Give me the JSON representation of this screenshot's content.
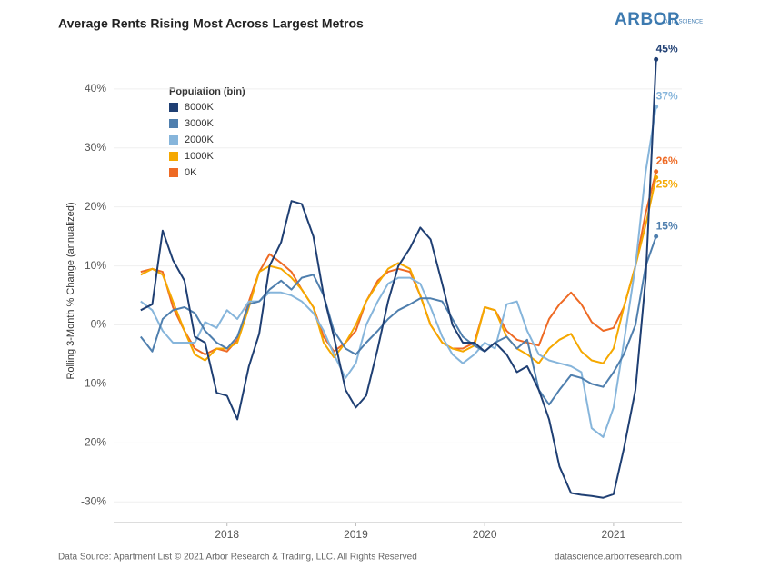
{
  "chart_data": {
    "type": "line",
    "title": "Average Rents Rising Most Across Largest Metros",
    "logo": "ARBOR",
    "logo_sub": "DATA SCIENCE",
    "y_label": "Rolling 3-Month % Change (annualized)",
    "legend_title": "Population (bin)",
    "source": "Data Source: Apartment List © 2021 Arbor Research & Trading, LLC. All Rights Reserved",
    "website": "datascience.arborresearch.com",
    "x": [
      2017.33,
      2017.42,
      2017.5,
      2017.58,
      2017.67,
      2017.75,
      2017.83,
      2017.92,
      2018.0,
      2018.08,
      2018.17,
      2018.25,
      2018.33,
      2018.42,
      2018.5,
      2018.58,
      2018.67,
      2018.75,
      2018.83,
      2018.92,
      2019.0,
      2019.08,
      2019.17,
      2019.25,
      2019.33,
      2019.42,
      2019.5,
      2019.58,
      2019.67,
      2019.75,
      2019.83,
      2019.92,
      2020.0,
      2020.08,
      2020.17,
      2020.25,
      2020.33,
      2020.42,
      2020.5,
      2020.58,
      2020.67,
      2020.75,
      2020.83,
      2020.92,
      2021.0,
      2021.08,
      2021.17,
      2021.25,
      2021.33
    ],
    "xlim": [
      2017.12,
      2021.53
    ],
    "xticks": [
      2018,
      2019,
      2020,
      2021
    ],
    "ylim": [
      -33.5,
      46.6
    ],
    "yticks": [
      {
        "value": -30,
        "label": "-30%"
      },
      {
        "value": -20,
        "label": "-20%"
      },
      {
        "value": -10,
        "label": "-10%"
      },
      {
        "value": 0,
        "label": "0%"
      },
      {
        "value": 10,
        "label": "10%"
      },
      {
        "value": 20,
        "label": "20%"
      },
      {
        "value": 30,
        "label": "30%"
      },
      {
        "value": 40,
        "label": "40%"
      }
    ],
    "grid": true,
    "series": [
      {
        "name": "8000K",
        "color": "#1f3f73",
        "end_label": "45%",
        "values": [
          2.5,
          3.5,
          16,
          11,
          7.5,
          -2,
          -3,
          -11.5,
          -12,
          -16,
          -7,
          -1.5,
          10,
          14,
          21,
          20.5,
          15,
          5,
          -2,
          -11,
          -14,
          -12,
          -4,
          4,
          10,
          13,
          16.5,
          14.5,
          7,
          0,
          -3,
          -3,
          -4.5,
          -3,
          -5,
          -8,
          -7,
          -11,
          -16,
          -24,
          -28.5,
          -28.8,
          -29,
          -29.3,
          -28.7,
          -21,
          -11,
          8,
          45
        ]
      },
      {
        "name": "3000K",
        "color": "#4f7fae",
        "end_label": "15%",
        "values": [
          -2,
          -4.5,
          1,
          2.5,
          3,
          2,
          -1,
          -3,
          -4,
          -2,
          3.5,
          4,
          6,
          7.5,
          6,
          8,
          8.5,
          5,
          -1,
          -4,
          -5,
          -3,
          -1,
          1,
          2.5,
          3.5,
          4.5,
          4.5,
          4,
          1,
          -2,
          -3.5,
          -4.5,
          -3,
          -2,
          -4,
          -2.5,
          -11,
          -13.5,
          -11,
          -8.5,
          -9,
          -10,
          -10.5,
          -8,
          -5,
          0,
          10,
          15
        ]
      },
      {
        "name": "2000K",
        "color": "#86b5db",
        "end_label": "37%",
        "values": [
          4,
          2.5,
          -1,
          -3,
          -3,
          -3,
          0.5,
          -0.5,
          2.5,
          1,
          4,
          4,
          5.5,
          5.5,
          5,
          4,
          2,
          -1,
          -5,
          -9,
          -6.5,
          0,
          4,
          7,
          8,
          8,
          7,
          3,
          -2,
          -5,
          -6.5,
          -5,
          -3,
          -4,
          3.5,
          4,
          -1,
          -5,
          -6,
          -6.5,
          -7,
          -8,
          -17.5,
          -19,
          -14,
          -3,
          10,
          26,
          37
        ]
      },
      {
        "name": "1000K",
        "color": "#f5a800",
        "end_label": "25%",
        "values": [
          8.5,
          9.5,
          8.5,
          4,
          -1,
          -5,
          -6,
          -4,
          -4,
          -3,
          3,
          9,
          10,
          9.5,
          8,
          6,
          3,
          -3,
          -5.5,
          -3,
          0,
          4,
          7,
          9.5,
          10.5,
          9.5,
          5,
          0,
          -3,
          -4,
          -4.5,
          -3.5,
          3,
          2.5,
          -2,
          -4,
          -5,
          -6.5,
          -4,
          -2.5,
          -1.5,
          -4.5,
          -6,
          -6.5,
          -4,
          3,
          10,
          17,
          25
        ]
      },
      {
        "name": "0K",
        "color": "#ee6a24",
        "end_label": "26%",
        "values": [
          9,
          9.5,
          9,
          3,
          -1,
          -4,
          -5,
          -4,
          -4.5,
          -2.5,
          4,
          9,
          12,
          10.5,
          9,
          6,
          3,
          -2,
          -4.5,
          -3,
          -1,
          4,
          7.5,
          9,
          9.5,
          9,
          5,
          0,
          -3,
          -4,
          -4,
          -3,
          3,
          2.5,
          -1,
          -2.5,
          -3,
          -3.5,
          1,
          3.5,
          5.5,
          3.5,
          0.5,
          -1,
          -0.5,
          3,
          10,
          19,
          26
        ]
      }
    ]
  }
}
